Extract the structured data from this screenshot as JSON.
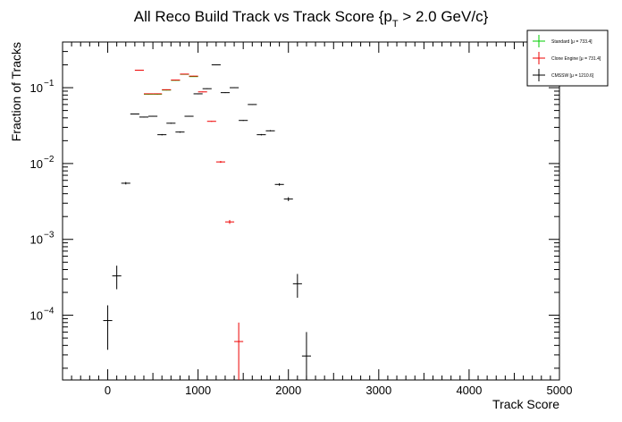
{
  "chart_data": {
    "type": "scatter",
    "title": "All Reco Build Track vs Track Score {p",
    "title_sub": "T",
    "title_tail": " > 2.0 GeV/c}",
    "xlabel": "Track Score",
    "ylabel": "Fraction of Tracks",
    "xlim": [
      -500,
      5000
    ],
    "ylim": [
      1.4e-05,
      0.4
    ],
    "y_log": true,
    "grid": false,
    "legend_placement": "top-right",
    "x_ticks": [
      0,
      1000,
      2000,
      3000,
      4000,
      5000
    ],
    "x_tick_labels": [
      "0",
      "1000",
      "2000",
      "3000",
      "4000",
      "5000"
    ],
    "y_major_ticks": [
      0.0001,
      0.001,
      0.01,
      0.1
    ],
    "y_tick_base": [
      "10",
      "10",
      "10",
      "10"
    ],
    "y_tick_exp": [
      "−4",
      "−3",
      "−2",
      "−1"
    ],
    "series": [
      {
        "name": "Standard  [μ = 733.4]",
        "color": "#00cc00",
        "points": [
          {
            "x": 450,
            "y": 0.082,
            "xerr": 50,
            "ylo": 0.081,
            "yhi": 0.083
          },
          {
            "x": 550,
            "y": 0.082,
            "xerr": 50,
            "ylo": 0.081,
            "yhi": 0.083
          },
          {
            "x": 650,
            "y": 0.093,
            "xerr": 50,
            "ylo": 0.092,
            "yhi": 0.094
          },
          {
            "x": 750,
            "y": 0.125,
            "xerr": 50,
            "ylo": 0.124,
            "yhi": 0.126
          },
          {
            "x": 850,
            "y": 0.15,
            "xerr": 50,
            "ylo": 0.149,
            "yhi": 0.151
          },
          {
            "x": 950,
            "y": 0.14,
            "xerr": 50,
            "ylo": 0.139,
            "yhi": 0.141
          }
        ]
      },
      {
        "name": "Clone Engine  [μ = 731.4]",
        "color": "#ee0000",
        "points": [
          {
            "x": 350,
            "y": 0.17,
            "xerr": 50,
            "ylo": 0.169,
            "yhi": 0.171
          },
          {
            "x": 450,
            "y": 0.083,
            "xerr": 50,
            "ylo": 0.082,
            "yhi": 0.084
          },
          {
            "x": 550,
            "y": 0.083,
            "xerr": 50,
            "ylo": 0.082,
            "yhi": 0.084
          },
          {
            "x": 650,
            "y": 0.094,
            "xerr": 50,
            "ylo": 0.093,
            "yhi": 0.095
          },
          {
            "x": 750,
            "y": 0.126,
            "xerr": 50,
            "ylo": 0.125,
            "yhi": 0.127
          },
          {
            "x": 850,
            "y": 0.151,
            "xerr": 50,
            "ylo": 0.15,
            "yhi": 0.152
          },
          {
            "x": 950,
            "y": 0.142,
            "xerr": 50,
            "ylo": 0.141,
            "yhi": 0.143
          },
          {
            "x": 1050,
            "y": 0.088,
            "xerr": 50,
            "ylo": 0.087,
            "yhi": 0.089
          },
          {
            "x": 1150,
            "y": 0.036,
            "xerr": 50,
            "ylo": 0.0355,
            "yhi": 0.0365
          },
          {
            "x": 1250,
            "y": 0.0105,
            "xerr": 50,
            "ylo": 0.0102,
            "yhi": 0.0108
          },
          {
            "x": 1350,
            "y": 0.0017,
            "xerr": 50,
            "ylo": 0.0016,
            "yhi": 0.0018
          },
          {
            "x": 1450,
            "y": 4.5e-05,
            "xerr": 50,
            "ylo": 1.4e-05,
            "yhi": 8e-05
          }
        ]
      },
      {
        "name": "CMSSW  [μ = 1210.6]",
        "color": "#000000",
        "points": [
          {
            "x": 0,
            "y": 8.5e-05,
            "xerr": 50,
            "ylo": 3.5e-05,
            "yhi": 0.000135
          },
          {
            "x": 100,
            "y": 0.00033,
            "xerr": 50,
            "ylo": 0.00022,
            "yhi": 0.00045
          },
          {
            "x": 200,
            "y": 0.0055,
            "xerr": 50,
            "ylo": 0.0053,
            "yhi": 0.0057
          },
          {
            "x": 300,
            "y": 0.045,
            "xerr": 50,
            "ylo": 0.0445,
            "yhi": 0.0455
          },
          {
            "x": 400,
            "y": 0.041,
            "xerr": 50,
            "ylo": 0.0405,
            "yhi": 0.0415
          },
          {
            "x": 500,
            "y": 0.042,
            "xerr": 50,
            "ylo": 0.0415,
            "yhi": 0.0425
          },
          {
            "x": 600,
            "y": 0.024,
            "xerr": 50,
            "ylo": 0.0235,
            "yhi": 0.0245
          },
          {
            "x": 700,
            "y": 0.034,
            "xerr": 50,
            "ylo": 0.0335,
            "yhi": 0.0345
          },
          {
            "x": 800,
            "y": 0.026,
            "xerr": 50,
            "ylo": 0.0255,
            "yhi": 0.0265
          },
          {
            "x": 900,
            "y": 0.042,
            "xerr": 50,
            "ylo": 0.0415,
            "yhi": 0.0425
          },
          {
            "x": 1000,
            "y": 0.083,
            "xerr": 50,
            "ylo": 0.082,
            "yhi": 0.084
          },
          {
            "x": 1100,
            "y": 0.097,
            "xerr": 50,
            "ylo": 0.096,
            "yhi": 0.098
          },
          {
            "x": 1200,
            "y": 0.2,
            "xerr": 50,
            "ylo": 0.199,
            "yhi": 0.201
          },
          {
            "x": 1300,
            "y": 0.086,
            "xerr": 50,
            "ylo": 0.085,
            "yhi": 0.087
          },
          {
            "x": 1400,
            "y": 0.1,
            "xerr": 50,
            "ylo": 0.099,
            "yhi": 0.101
          },
          {
            "x": 1500,
            "y": 0.037,
            "xerr": 50,
            "ylo": 0.0365,
            "yhi": 0.0375
          },
          {
            "x": 1600,
            "y": 0.06,
            "xerr": 50,
            "ylo": 0.0595,
            "yhi": 0.0605
          },
          {
            "x": 1700,
            "y": 0.024,
            "xerr": 50,
            "ylo": 0.0235,
            "yhi": 0.0245
          },
          {
            "x": 1800,
            "y": 0.027,
            "xerr": 50,
            "ylo": 0.0265,
            "yhi": 0.0275
          },
          {
            "x": 1900,
            "y": 0.0053,
            "xerr": 50,
            "ylo": 0.0051,
            "yhi": 0.0055
          },
          {
            "x": 2000,
            "y": 0.0034,
            "xerr": 50,
            "ylo": 0.0032,
            "yhi": 0.0036
          },
          {
            "x": 2100,
            "y": 0.00026,
            "xerr": 50,
            "ylo": 0.00017,
            "yhi": 0.00035
          },
          {
            "x": 2200,
            "y": 2.9e-05,
            "xerr": 50,
            "ylo": 1.4e-05,
            "yhi": 6e-05
          }
        ]
      }
    ]
  }
}
